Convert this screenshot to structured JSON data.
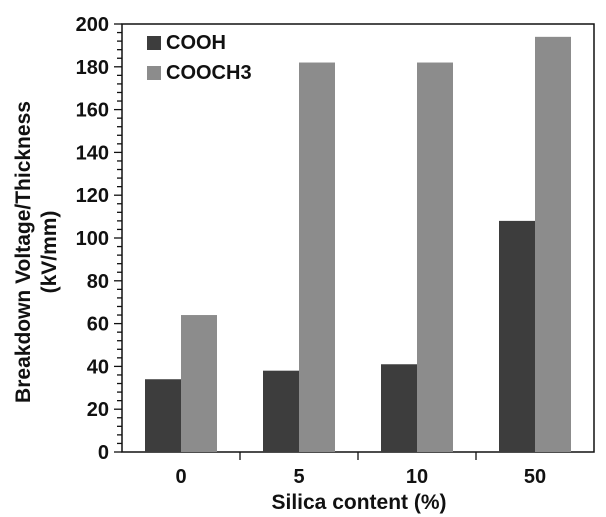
{
  "chart_data": {
    "type": "bar",
    "title": "",
    "xlabel": "Silica content (%)",
    "ylabel_lines": [
      "Breakdown Voltage/Thickness",
      "(kV/mm)"
    ],
    "categories": [
      "0",
      "5",
      "10",
      "50"
    ],
    "series": [
      {
        "name": "COOH",
        "values": [
          34,
          38,
          41,
          108
        ],
        "color": "#3d3d3d"
      },
      {
        "name": "COOCH3",
        "values": [
          64,
          182,
          182,
          194
        ],
        "color": "#8c8c8c"
      }
    ],
    "ylim": [
      0,
      200
    ],
    "yticks": [
      0,
      20,
      40,
      60,
      80,
      100,
      120,
      140,
      160,
      180,
      200
    ],
    "grid": false,
    "legend_position": "top-left"
  }
}
